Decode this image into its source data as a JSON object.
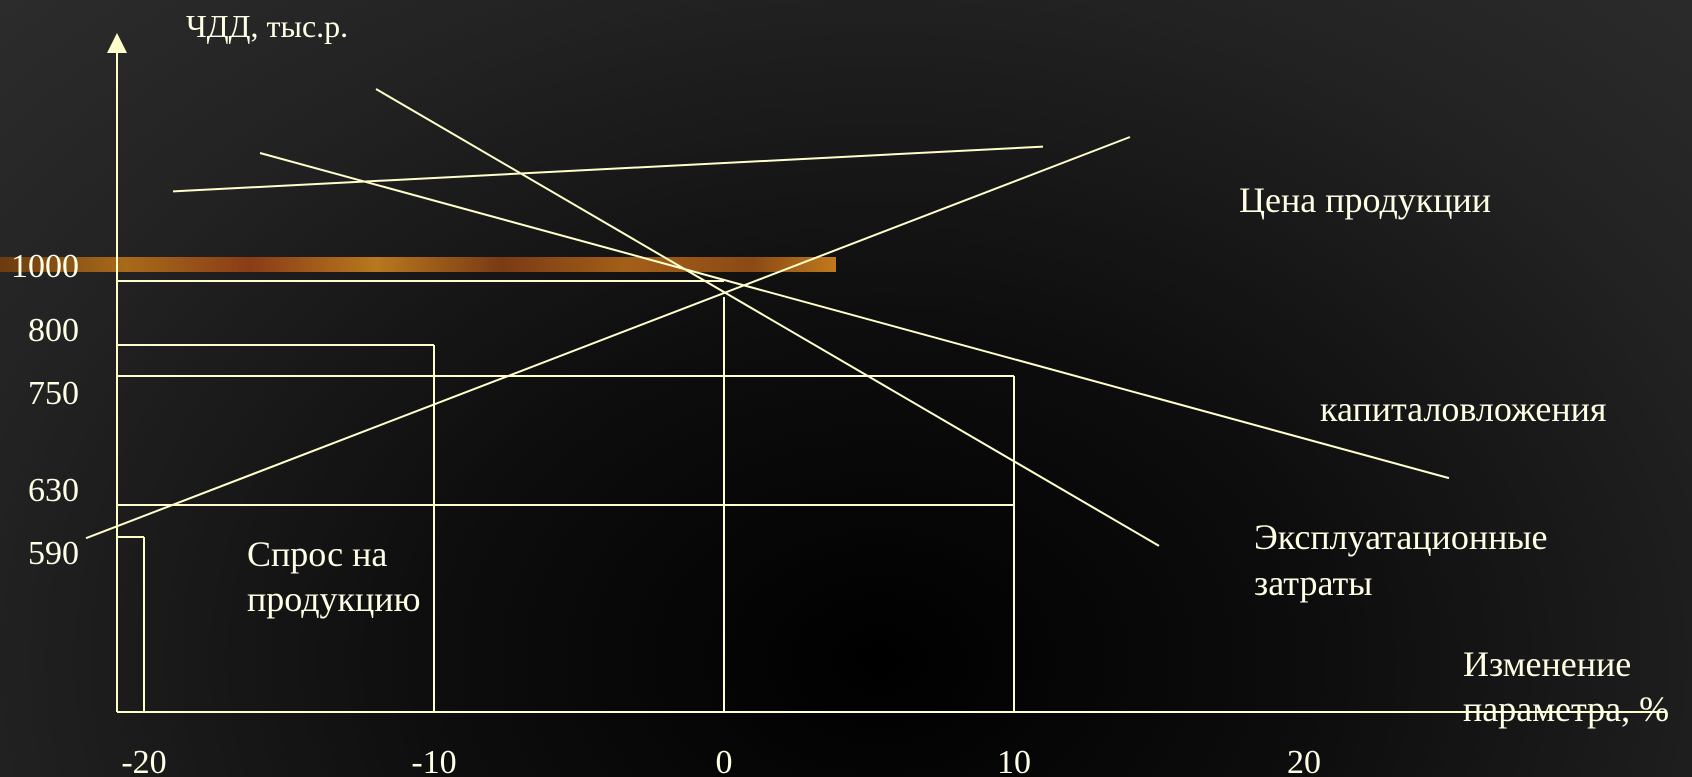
{
  "colors": {
    "background": "#1a1a1a",
    "line": "#ffffcc",
    "text": "#ffffe6"
  },
  "chart_data": {
    "type": "line",
    "title": "",
    "ylabel": "ЧДД, тыс.р.",
    "xlabel": [
      "Изменение",
      "параметра, %"
    ],
    "xticks": [
      "-20",
      "-10",
      "0",
      "10",
      "20"
    ],
    "yticks": [
      "1000",
      "800",
      "750",
      "630",
      "590"
    ],
    "x_range": [
      -22,
      30
    ],
    "series": [
      {
        "name": "Цена продукции",
        "points": [
          [
            -19,
            1280
          ],
          [
            11,
            1420
          ]
        ]
      },
      {
        "name": "Цена продукции",
        "points": [
          [
            -22,
            586
          ],
          [
            14,
            1450
          ]
        ]
      },
      {
        "name": "капиталовложения",
        "points": [
          [
            -16,
            1400
          ],
          [
            25,
            655
          ]
        ]
      },
      {
        "name": "Эксплуатационные затраты",
        "points": [
          [
            -12,
            1600
          ],
          [
            15,
            560
          ]
        ]
      }
    ],
    "guides": [
      {
        "x": -10,
        "y": 800
      },
      {
        "x": 10,
        "y": 750
      },
      {
        "x": 10,
        "y": 630
      },
      {
        "x": -20,
        "y": 590
      }
    ],
    "annotations": {
      "price": "Цена продукции",
      "capex": "капиталовложения",
      "opex": [
        "Эксплуатационные",
        "затраты"
      ],
      "demand": [
        "Спрос на",
        "продукцию"
      ]
    }
  }
}
